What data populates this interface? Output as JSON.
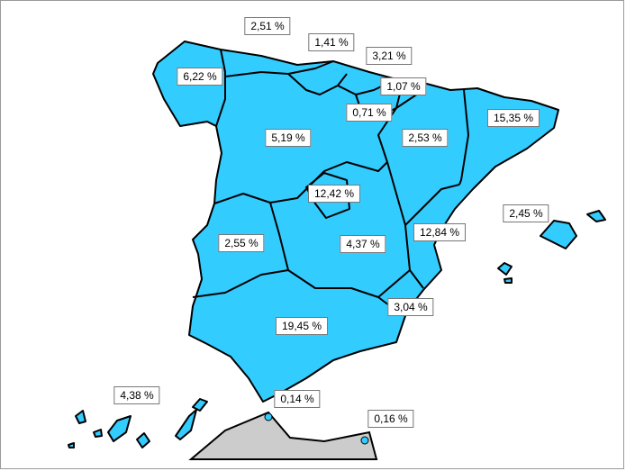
{
  "map": {
    "labels": [
      "2,51 %",
      "1,41 %",
      "3,21 %",
      "6,22 %",
      "1,07 %",
      "0,71 %",
      "15,35 %",
      "5,19 %",
      "2,53 %",
      "12,42 %",
      "2,45 %",
      "12,84 %",
      "2,55 %",
      "4,37 %",
      "3,04 %",
      "19,45 %",
      "4,38 %",
      "0,14 %",
      "0,16 %"
    ]
  }
}
